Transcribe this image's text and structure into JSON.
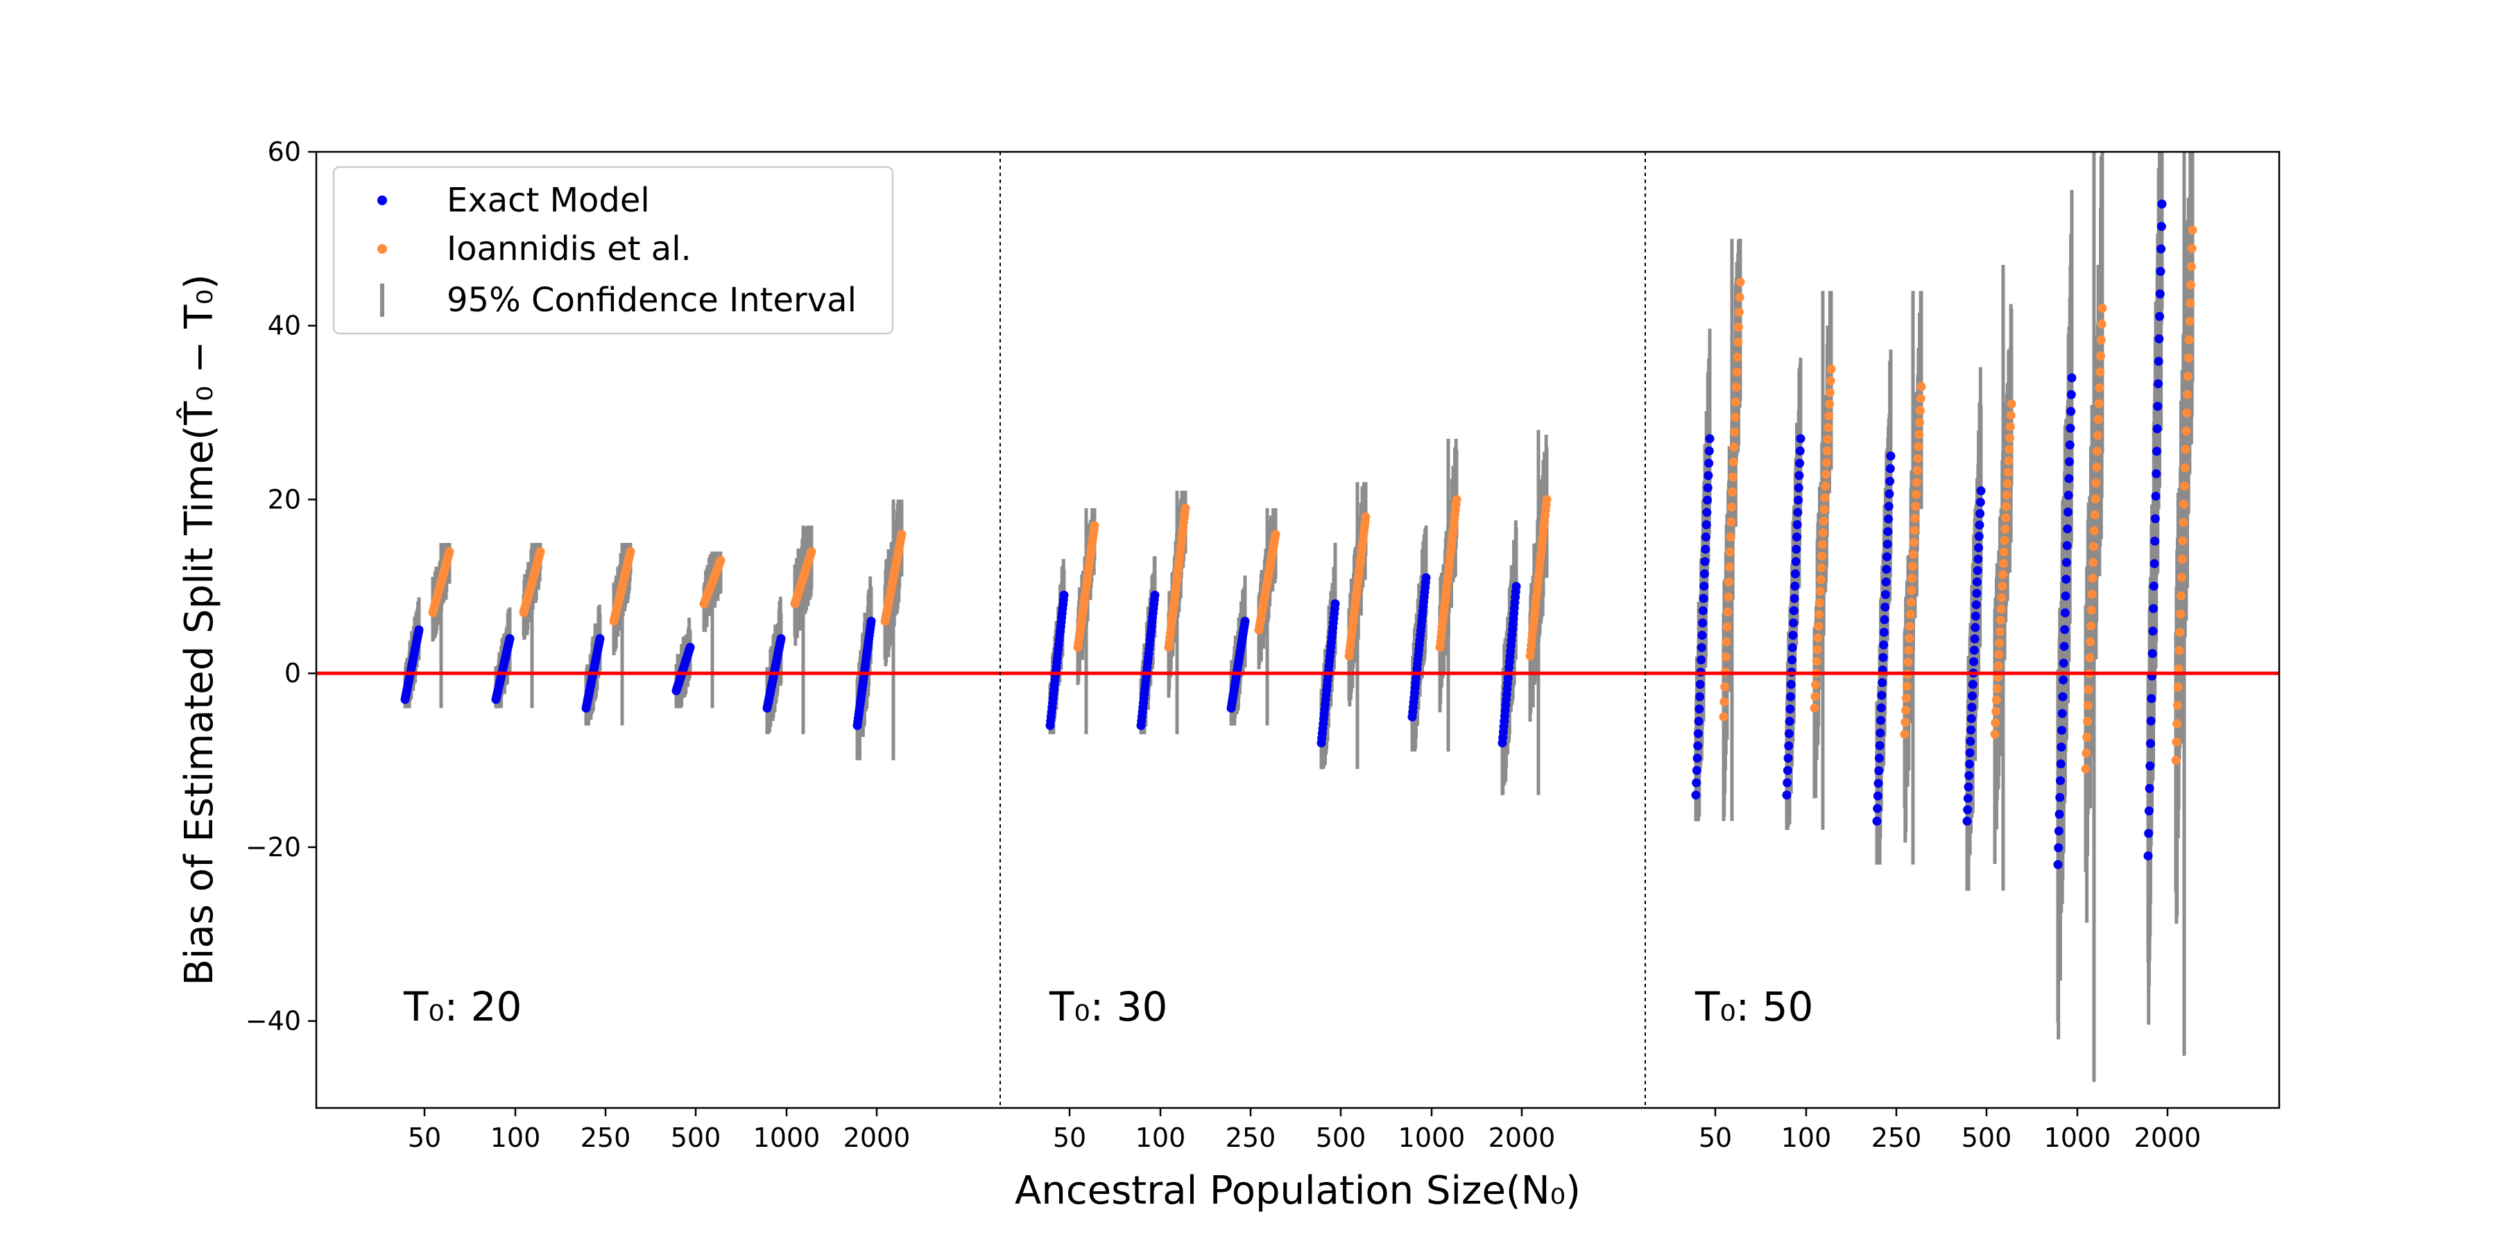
{
  "chart_data": {
    "type": "scatter",
    "xlabel": "Ancestral Population Size(N₀)",
    "ylabel": "Bias of Estimated Split Time(T̂₀ − T₀)",
    "ylim": [
      -50,
      60
    ],
    "yticks": [
      -40,
      -20,
      0,
      20,
      40,
      60
    ],
    "reference_line": {
      "y": 0,
      "color": "#ff0000"
    },
    "grid": false,
    "legend": {
      "position": "top-left",
      "entries": [
        "Exact Model",
        "Ioannidis et al.",
        "95% Confidence Interval"
      ]
    },
    "colors": {
      "exact": "#0000ee",
      "ioannidis": "#ff8c3a",
      "ci": "#8c8c8c"
    },
    "categories": [
      "50",
      "100",
      "250",
      "500",
      "1000",
      "2000"
    ],
    "panels": [
      {
        "label": "T₀: 20",
        "groups": [
          {
            "N0": "50",
            "exact": {
              "min": -3,
              "max": 5
            },
            "ioannidis": {
              "min": 7,
              "max": 14
            },
            "ci": {
              "min": -4,
              "max": 15
            }
          },
          {
            "N0": "100",
            "exact": {
              "min": -3,
              "max": 4
            },
            "ioannidis": {
              "min": 7,
              "max": 14
            },
            "ci": {
              "min": -4,
              "max": 15
            }
          },
          {
            "N0": "250",
            "exact": {
              "min": -4,
              "max": 4
            },
            "ioannidis": {
              "min": 6,
              "max": 14
            },
            "ci": {
              "min": -6,
              "max": 15
            }
          },
          {
            "N0": "500",
            "exact": {
              "min": -2,
              "max": 3
            },
            "ioannidis": {
              "min": 8,
              "max": 13
            },
            "ci": {
              "min": -4,
              "max": 14
            }
          },
          {
            "N0": "1000",
            "exact": {
              "min": -4,
              "max": 4
            },
            "ioannidis": {
              "min": 8,
              "max": 14
            },
            "ci": {
              "min": -7,
              "max": 17
            }
          },
          {
            "N0": "2000",
            "exact": {
              "min": -6,
              "max": 6
            },
            "ioannidis": {
              "min": 6,
              "max": 16
            },
            "ci": {
              "min": -10,
              "max": 20
            }
          }
        ]
      },
      {
        "label": "T₀: 30",
        "groups": [
          {
            "N0": "50",
            "exact": {
              "min": -6,
              "max": 9
            },
            "ioannidis": {
              "min": 3,
              "max": 17
            },
            "ci": {
              "min": -7,
              "max": 19
            }
          },
          {
            "N0": "100",
            "exact": {
              "min": -6,
              "max": 9
            },
            "ioannidis": {
              "min": 3,
              "max": 19
            },
            "ci": {
              "min": -7,
              "max": 21
            }
          },
          {
            "N0": "250",
            "exact": {
              "min": -4,
              "max": 6
            },
            "ioannidis": {
              "min": 5,
              "max": 16
            },
            "ci": {
              "min": -6,
              "max": 19
            }
          },
          {
            "N0": "500",
            "exact": {
              "min": -8,
              "max": 8
            },
            "ioannidis": {
              "min": 2,
              "max": 18
            },
            "ci": {
              "min": -11,
              "max": 22
            }
          },
          {
            "N0": "1000",
            "exact": {
              "min": -5,
              "max": 11
            },
            "ioannidis": {
              "min": 3,
              "max": 20
            },
            "ci": {
              "min": -9,
              "max": 27
            }
          },
          {
            "N0": "2000",
            "exact": {
              "min": -8,
              "max": 10
            },
            "ioannidis": {
              "min": 2,
              "max": 20
            },
            "ci": {
              "min": -14,
              "max": 28
            }
          }
        ]
      },
      {
        "label": "T₀: 50",
        "groups": [
          {
            "N0": "50",
            "exact": {
              "min": -14,
              "max": 27
            },
            "ioannidis": {
              "min": -5,
              "max": 45
            },
            "ci": {
              "min": -17,
              "max": 50
            }
          },
          {
            "N0": "100",
            "exact": {
              "min": -14,
              "max": 27
            },
            "ioannidis": {
              "min": -4,
              "max": 35
            },
            "ci": {
              "min": -18,
              "max": 44
            }
          },
          {
            "N0": "250",
            "exact": {
              "min": -17,
              "max": 25
            },
            "ioannidis": {
              "min": -7,
              "max": 33
            },
            "ci": {
              "min": -22,
              "max": 44
            }
          },
          {
            "N0": "500",
            "exact": {
              "min": -17,
              "max": 21
            },
            "ioannidis": {
              "min": -7,
              "max": 31
            },
            "ci": {
              "min": -25,
              "max": 47
            }
          },
          {
            "N0": "1000",
            "exact": {
              "min": -22,
              "max": 34
            },
            "ioannidis": {
              "min": -11,
              "max": 42
            },
            "ci": {
              "min": -47,
              "max": 60
            }
          },
          {
            "N0": "2000",
            "exact": {
              "min": -21,
              "max": 54
            },
            "ioannidis": {
              "min": -10,
              "max": 51
            },
            "ci": {
              "min": -44,
              "max": 60
            }
          }
        ]
      }
    ]
  }
}
